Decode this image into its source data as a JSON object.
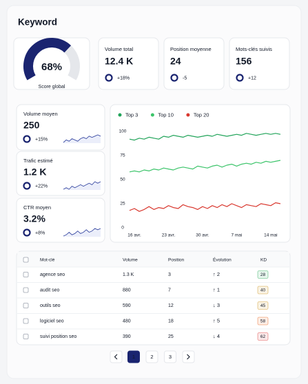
{
  "header": {
    "title": "Keyword"
  },
  "gauge": {
    "value": 68,
    "label": "68%",
    "range": [
      0,
      100
    ],
    "caption": "Score global"
  },
  "stats": [
    {
      "label": "Volume total",
      "value": "12.4 K",
      "change": "+18%"
    },
    {
      "label": "Position moyenne",
      "value": "24",
      "change": "-5"
    },
    {
      "label": "Mots-clés suivis",
      "value": "156",
      "change": "+12"
    }
  ],
  "metrics": [
    {
      "label": "Volume moyen",
      "value": "250",
      "change": "+15%",
      "sparkline": [
        3,
        5,
        4,
        6,
        5,
        4,
        6,
        7,
        6,
        8,
        7,
        8,
        9,
        8
      ]
    },
    {
      "label": "Trafic estimé",
      "value": "1.2 K",
      "change": "+22%",
      "sparkline": [
        3,
        4,
        3,
        5,
        4,
        5,
        6,
        5,
        6,
        7,
        6,
        8,
        7,
        8
      ]
    },
    {
      "label": "CTR moyen",
      "value": "3.2%",
      "change": "+8%",
      "sparkline": [
        2,
        3,
        5,
        3,
        4,
        6,
        4,
        5,
        7,
        5,
        6,
        8,
        7,
        8
      ]
    }
  ],
  "chart_data": {
    "type": "line",
    "categories": [
      null,
      "16 avr.",
      null,
      null,
      null,
      null,
      null,
      null,
      "23 avr.",
      null,
      null,
      null,
      null,
      null,
      null,
      "30 avr.",
      null,
      null,
      null,
      null,
      null,
      null,
      "7 mai",
      null,
      null,
      null,
      null,
      null,
      null,
      "14 mai",
      null,
      null
    ],
    "series": [
      {
        "name": "Top 3",
        "color": "#22a45a",
        "values": [
          92,
          91,
          93,
          92,
          94,
          93,
          92,
          95,
          94,
          96,
          95,
          94,
          96,
          95,
          94,
          95,
          96,
          95,
          97,
          96,
          95,
          96,
          97,
          96,
          98,
          97,
          96,
          97,
          98,
          97,
          98,
          97
        ]
      },
      {
        "name": "Top 10",
        "color": "#3cc46a",
        "values": [
          58,
          59,
          58,
          60,
          59,
          61,
          60,
          62,
          61,
          60,
          62,
          63,
          62,
          61,
          64,
          63,
          62,
          64,
          65,
          63,
          65,
          66,
          64,
          66,
          67,
          66,
          68,
          67,
          69,
          68,
          69,
          70
        ]
      },
      {
        "name": "Top 20",
        "color": "#d9382f",
        "values": [
          18,
          20,
          17,
          19,
          22,
          19,
          21,
          20,
          23,
          21,
          20,
          24,
          22,
          21,
          19,
          22,
          20,
          23,
          21,
          24,
          22,
          25,
          23,
          21,
          24,
          23,
          22,
          25,
          24,
          23,
          26,
          25
        ]
      }
    ],
    "ylim": [
      0,
      100
    ],
    "yticks": [
      0,
      25,
      50,
      75,
      100
    ],
    "grid": false,
    "legend": "top-left"
  },
  "table": {
    "columns": [
      "Mot-clé",
      "Volume",
      "Position",
      "Évolution",
      "KD"
    ],
    "rows": [
      {
        "keyword": "agence seo",
        "volume": "1.3 K",
        "position": "3",
        "evolution": "↑ 2",
        "evolution_color": "#16a34a",
        "kd": "28",
        "kd_color": "#16a34a"
      },
      {
        "keyword": "audit seo",
        "volume": "880",
        "position": "7",
        "evolution": "↑ 1",
        "evolution_color": "#16a34a",
        "kd": "40",
        "kd_color": "#ca8a04"
      },
      {
        "keyword": "outils seo",
        "volume": "590",
        "position": "12",
        "evolution": "↓ 3",
        "evolution_color": "#dc2626",
        "kd": "45",
        "kd_color": "#ca8a04"
      },
      {
        "keyword": "logiciel seo",
        "volume": "480",
        "position": "18",
        "evolution": "↑ 5",
        "evolution_color": "#16a34a",
        "kd": "58",
        "kd_color": "#ea580c"
      },
      {
        "keyword": "suivi position seo",
        "volume": "390",
        "position": "25",
        "evolution": "↓ 4",
        "evolution_color": "#dc2626",
        "kd": "62",
        "kd_color": "#dc2626"
      }
    ]
  },
  "pagination": {
    "pages": [
      1,
      2,
      3
    ],
    "current": 1
  }
}
